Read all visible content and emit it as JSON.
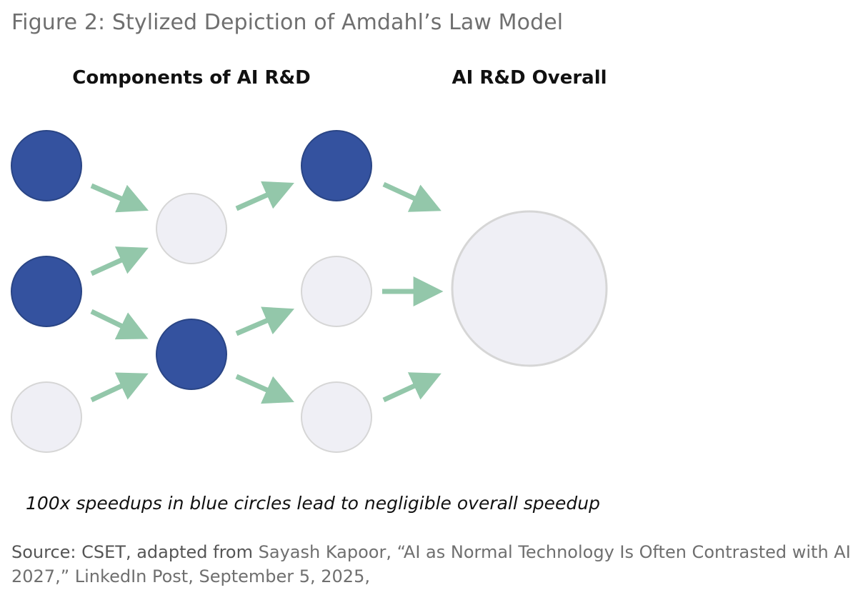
{
  "figure": {
    "title": "Figure 2: Stylized Depiction of Amdahl’s Law Model"
  },
  "diagram": {
    "heading_components": "Components of AI R&D",
    "heading_overall": "AI R&D Overall",
    "caption": "100x speedups in blue circles lead to negligible overall speedup",
    "colors": {
      "sped_up_node": "#34529f",
      "sped_up_stroke": "#2a4585",
      "normal_node": "#efeff5",
      "normal_stroke": "#d6d6d6",
      "arrow": "#93c7aa"
    },
    "columns": [
      {
        "nodes": [
          "sped-up",
          "sped-up",
          "normal"
        ]
      },
      {
        "nodes": [
          "normal",
          "sped-up"
        ]
      },
      {
        "nodes": [
          "sped-up",
          "normal",
          "normal"
        ]
      },
      {
        "nodes": [
          "overall"
        ]
      }
    ]
  },
  "source": {
    "label": "Source: CSET, adapted from",
    "text": " Sayash Kapoor, “AI as Normal Technology Is Often Contrasted with AI 2027,” LinkedIn Post, September 5, 2025,"
  }
}
